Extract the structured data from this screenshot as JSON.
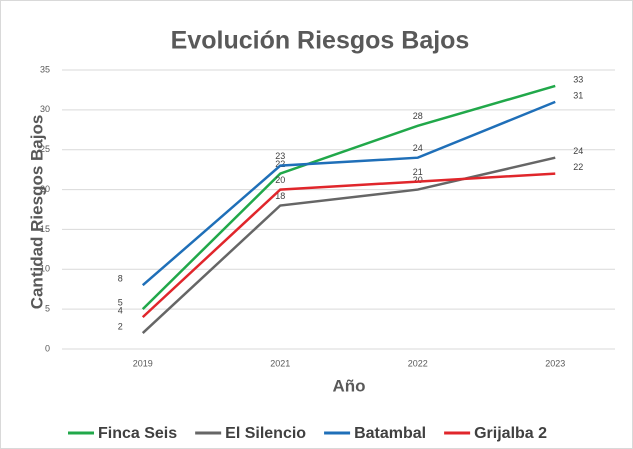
{
  "chart_data": {
    "type": "line",
    "title": "Evolución Riesgos Bajos",
    "x_label": "Año",
    "y_label": "Cantidad Riesgos Bajos",
    "categories": [
      "2019",
      "2021",
      "2022",
      "2023"
    ],
    "series": [
      {
        "name": "Finca Seis",
        "color": "#21a84a",
        "values": [
          5,
          22,
          28,
          33
        ]
      },
      {
        "name": "El Silencio",
        "color": "#666666",
        "values": [
          2,
          18,
          20,
          24
        ]
      },
      {
        "name": "Batambal",
        "color": "#1f6fb8",
        "values": [
          8,
          23,
          24,
          31
        ]
      },
      {
        "name": "Grijalba 2",
        "color": "#e0262b",
        "values": [
          4,
          20,
          21,
          22
        ]
      }
    ],
    "ylim": [
      0,
      35
    ],
    "yticks": [
      0,
      5,
      10,
      15,
      20,
      25,
      30,
      35
    ],
    "grid": true,
    "legend": "bottom"
  }
}
